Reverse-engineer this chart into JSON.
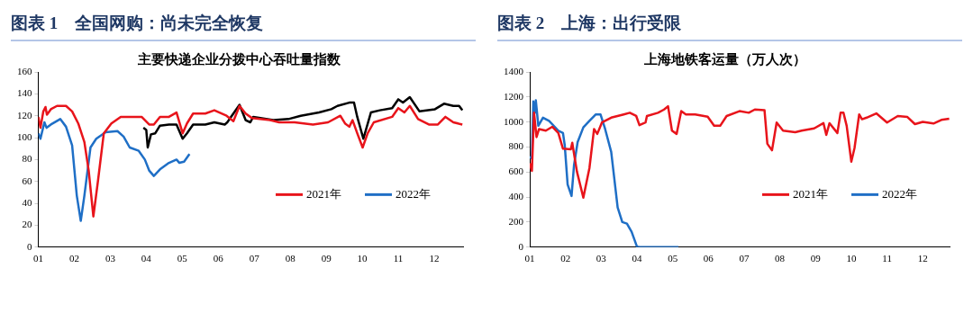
{
  "chart_data": [
    {
      "type": "line",
      "title": "图表 1　全国网购：尚未完全恢复",
      "subtitle": "主要快递企业分拨中心吞吐量指数",
      "xlim": [
        1,
        12.8
      ],
      "xticks": [
        {
          "value": 1,
          "label": "01"
        },
        {
          "value": 2,
          "label": "02"
        },
        {
          "value": 3,
          "label": "03"
        },
        {
          "value": 4,
          "label": "04"
        },
        {
          "value": 5,
          "label": "05"
        },
        {
          "value": 6,
          "label": "06"
        },
        {
          "value": 7,
          "label": "07"
        },
        {
          "value": 8,
          "label": "08"
        },
        {
          "value": 9,
          "label": "09"
        },
        {
          "value": 10,
          "label": "10"
        },
        {
          "value": 11,
          "label": "11"
        },
        {
          "value": 12,
          "label": "12"
        }
      ],
      "ylim": [
        0,
        160
      ],
      "yticks": [
        0,
        20,
        40,
        60,
        80,
        100,
        120,
        140,
        160
      ],
      "grid": false,
      "legend": "bottom right",
      "marker": "none",
      "line_style": "solid",
      "series": [
        {
          "name": "2021年",
          "color": "#e8141b",
          "x": [
            1.0,
            1.06,
            1.14,
            1.2,
            1.24,
            1.35,
            1.52,
            1.77,
            1.94,
            2.11,
            2.28,
            2.4,
            2.53,
            2.66,
            2.82,
            3.03,
            3.29,
            3.87,
            4.08,
            4.21,
            4.38,
            4.63,
            4.84,
            5.01,
            5.13,
            5.3,
            5.64,
            5.89,
            6.23,
            6.42,
            6.59,
            6.76,
            6.93,
            7.44,
            7.69,
            8.12,
            8.63,
            9.05,
            9.39,
            9.52,
            9.64,
            9.73,
            9.86,
            10.01,
            10.15,
            10.32,
            10.83,
            11.0,
            11.17,
            11.32,
            11.55,
            11.85,
            12.1,
            12.31,
            12.53,
            12.78
          ],
          "values": [
            119,
            109,
            124,
            128,
            121,
            126,
            129,
            129,
            124,
            113,
            96,
            70,
            28,
            61,
            104,
            113,
            119,
            119,
            112,
            112,
            119,
            119,
            123,
            104,
            113,
            122,
            122,
            125,
            120,
            115,
            129,
            122,
            118,
            116,
            114,
            114,
            112,
            114,
            120,
            113,
            110,
            116,
            104,
            91,
            104,
            114,
            119,
            127,
            123,
            129,
            117,
            112,
            112,
            119,
            114,
            112
          ]
        },
        {
          "name": "2022年",
          "color": "#1f6fc6",
          "x": [
            1.0,
            1.06,
            1.17,
            1.23,
            1.35,
            1.61,
            1.77,
            1.94,
            2.07,
            2.18,
            2.28,
            2.45,
            2.61,
            2.87,
            3.2,
            3.37,
            3.54,
            3.79,
            3.96,
            4.08,
            4.21,
            4.38,
            4.63,
            4.84,
            4.92,
            5.05,
            5.2
          ],
          "values": [
            104,
            99,
            114,
            109,
            112,
            117,
            110,
            93,
            47,
            24,
            47,
            91,
            99,
            105,
            106,
            101,
            91,
            88,
            80,
            70,
            65,
            71,
            77,
            80,
            77,
            78,
            85
          ]
        },
        {
          "color": "#000000",
          "x": [
            3.92,
            4.0,
            4.04,
            4.13,
            4.25,
            4.38,
            4.63,
            4.84,
            5.01,
            5.13,
            5.3,
            5.64,
            5.89,
            6.18,
            6.25,
            6.59,
            6.76,
            6.89,
            6.97,
            7.53,
            7.95,
            8.29,
            8.8,
            9.14,
            9.31,
            9.64,
            9.77,
            9.86,
            10.03,
            10.24,
            10.49,
            10.83,
            11.0,
            11.13,
            11.32,
            11.59,
            12.02,
            12.27,
            12.53,
            12.69,
            12.78
          ],
          "values": [
            109,
            107,
            91,
            103,
            104,
            111,
            112,
            112,
            99,
            104,
            112,
            112,
            114,
            112,
            114,
            130,
            116,
            114,
            119,
            116,
            117,
            120,
            123,
            126,
            129,
            132,
            132,
            119,
            99,
            123,
            125,
            127,
            135,
            132,
            137,
            124,
            126,
            131,
            129,
            129,
            125
          ]
        }
      ]
    },
    {
      "type": "line",
      "title": "图表 2　上海：出行受限",
      "subtitle": "上海地铁客运量（万人次）",
      "xlim": [
        1,
        12.75
      ],
      "xticks": [
        {
          "value": 1,
          "label": "01"
        },
        {
          "value": 2,
          "label": "02"
        },
        {
          "value": 3,
          "label": "03"
        },
        {
          "value": 4,
          "label": "04"
        },
        {
          "value": 5,
          "label": "05"
        },
        {
          "value": 6,
          "label": "06"
        },
        {
          "value": 7,
          "label": "07"
        },
        {
          "value": 8,
          "label": "08"
        },
        {
          "value": 9,
          "label": "09"
        },
        {
          "value": 10,
          "label": "10"
        },
        {
          "value": 11,
          "label": "11"
        },
        {
          "value": 12,
          "label": "12"
        }
      ],
      "ylim": [
        0,
        1400
      ],
      "yticks": [
        0,
        200,
        400,
        600,
        800,
        1000,
        1200,
        1400
      ],
      "grid": false,
      "legend": "bottom right",
      "marker": "none",
      "line_style": "solid",
      "series": [
        {
          "name": "2021年",
          "color": "#e8141b",
          "x": [
            1.0,
            1.06,
            1.12,
            1.19,
            1.26,
            1.45,
            1.63,
            1.8,
            1.93,
            2.15,
            2.19,
            2.32,
            2.5,
            2.67,
            2.8,
            2.89,
            3.02,
            3.28,
            3.63,
            3.8,
            3.98,
            4.07,
            4.24,
            4.28,
            4.59,
            4.76,
            4.87,
            4.98,
            5.11,
            5.24,
            5.37,
            5.63,
            5.98,
            6.16,
            6.33,
            6.51,
            6.87,
            7.13,
            7.3,
            7.57,
            7.65,
            7.78,
            7.91,
            8.09,
            8.43,
            8.61,
            8.96,
            9.22,
            9.3,
            9.39,
            9.61,
            9.7,
            9.78,
            9.87,
            10.0,
            10.09,
            10.22,
            10.3,
            10.43,
            10.7,
            11.0,
            11.3,
            11.57,
            11.78,
            12.0,
            12.3,
            12.52,
            12.74
          ],
          "values": [
            670,
            610,
            1074,
            879,
            944,
            931,
            962,
            912,
            787,
            782,
            834,
            605,
            396,
            631,
            944,
            905,
            996,
            1035,
            1061,
            1074,
            1048,
            975,
            996,
            1048,
            1074,
            1100,
            1126,
            931,
            905,
            1087,
            1061,
            1061,
            1043,
            970,
            970,
            1048,
            1087,
            1074,
            1100,
            1095,
            826,
            774,
            996,
            931,
            918,
            931,
            949,
            991,
            897,
            991,
            912,
            1074,
            1074,
            970,
            683,
            793,
            1061,
            1022,
            1035,
            1069,
            996,
            1048,
            1040,
            983,
            1001,
            988,
            1017,
            1027
          ]
        },
        {
          "name": "2022年",
          "color": "#1f6fc6",
          "x": [
            1.0,
            1.06,
            1.1,
            1.15,
            1.17,
            1.24,
            1.37,
            1.54,
            1.8,
            1.93,
            1.98,
            2.06,
            2.17,
            2.24,
            2.34,
            2.5,
            2.67,
            2.85,
            2.98,
            3.11,
            3.28,
            3.46,
            3.59,
            3.72,
            3.85,
            4.0,
            4.07,
            5.16
          ],
          "values": [
            722,
            709,
            1165,
            1074,
            1173,
            970,
            1035,
            1009,
            931,
            912,
            813,
            501,
            409,
            657,
            839,
            957,
            1009,
            1061,
            1061,
            944,
            761,
            318,
            201,
            188,
            123,
            5,
            0,
            0
          ]
        }
      ]
    }
  ]
}
